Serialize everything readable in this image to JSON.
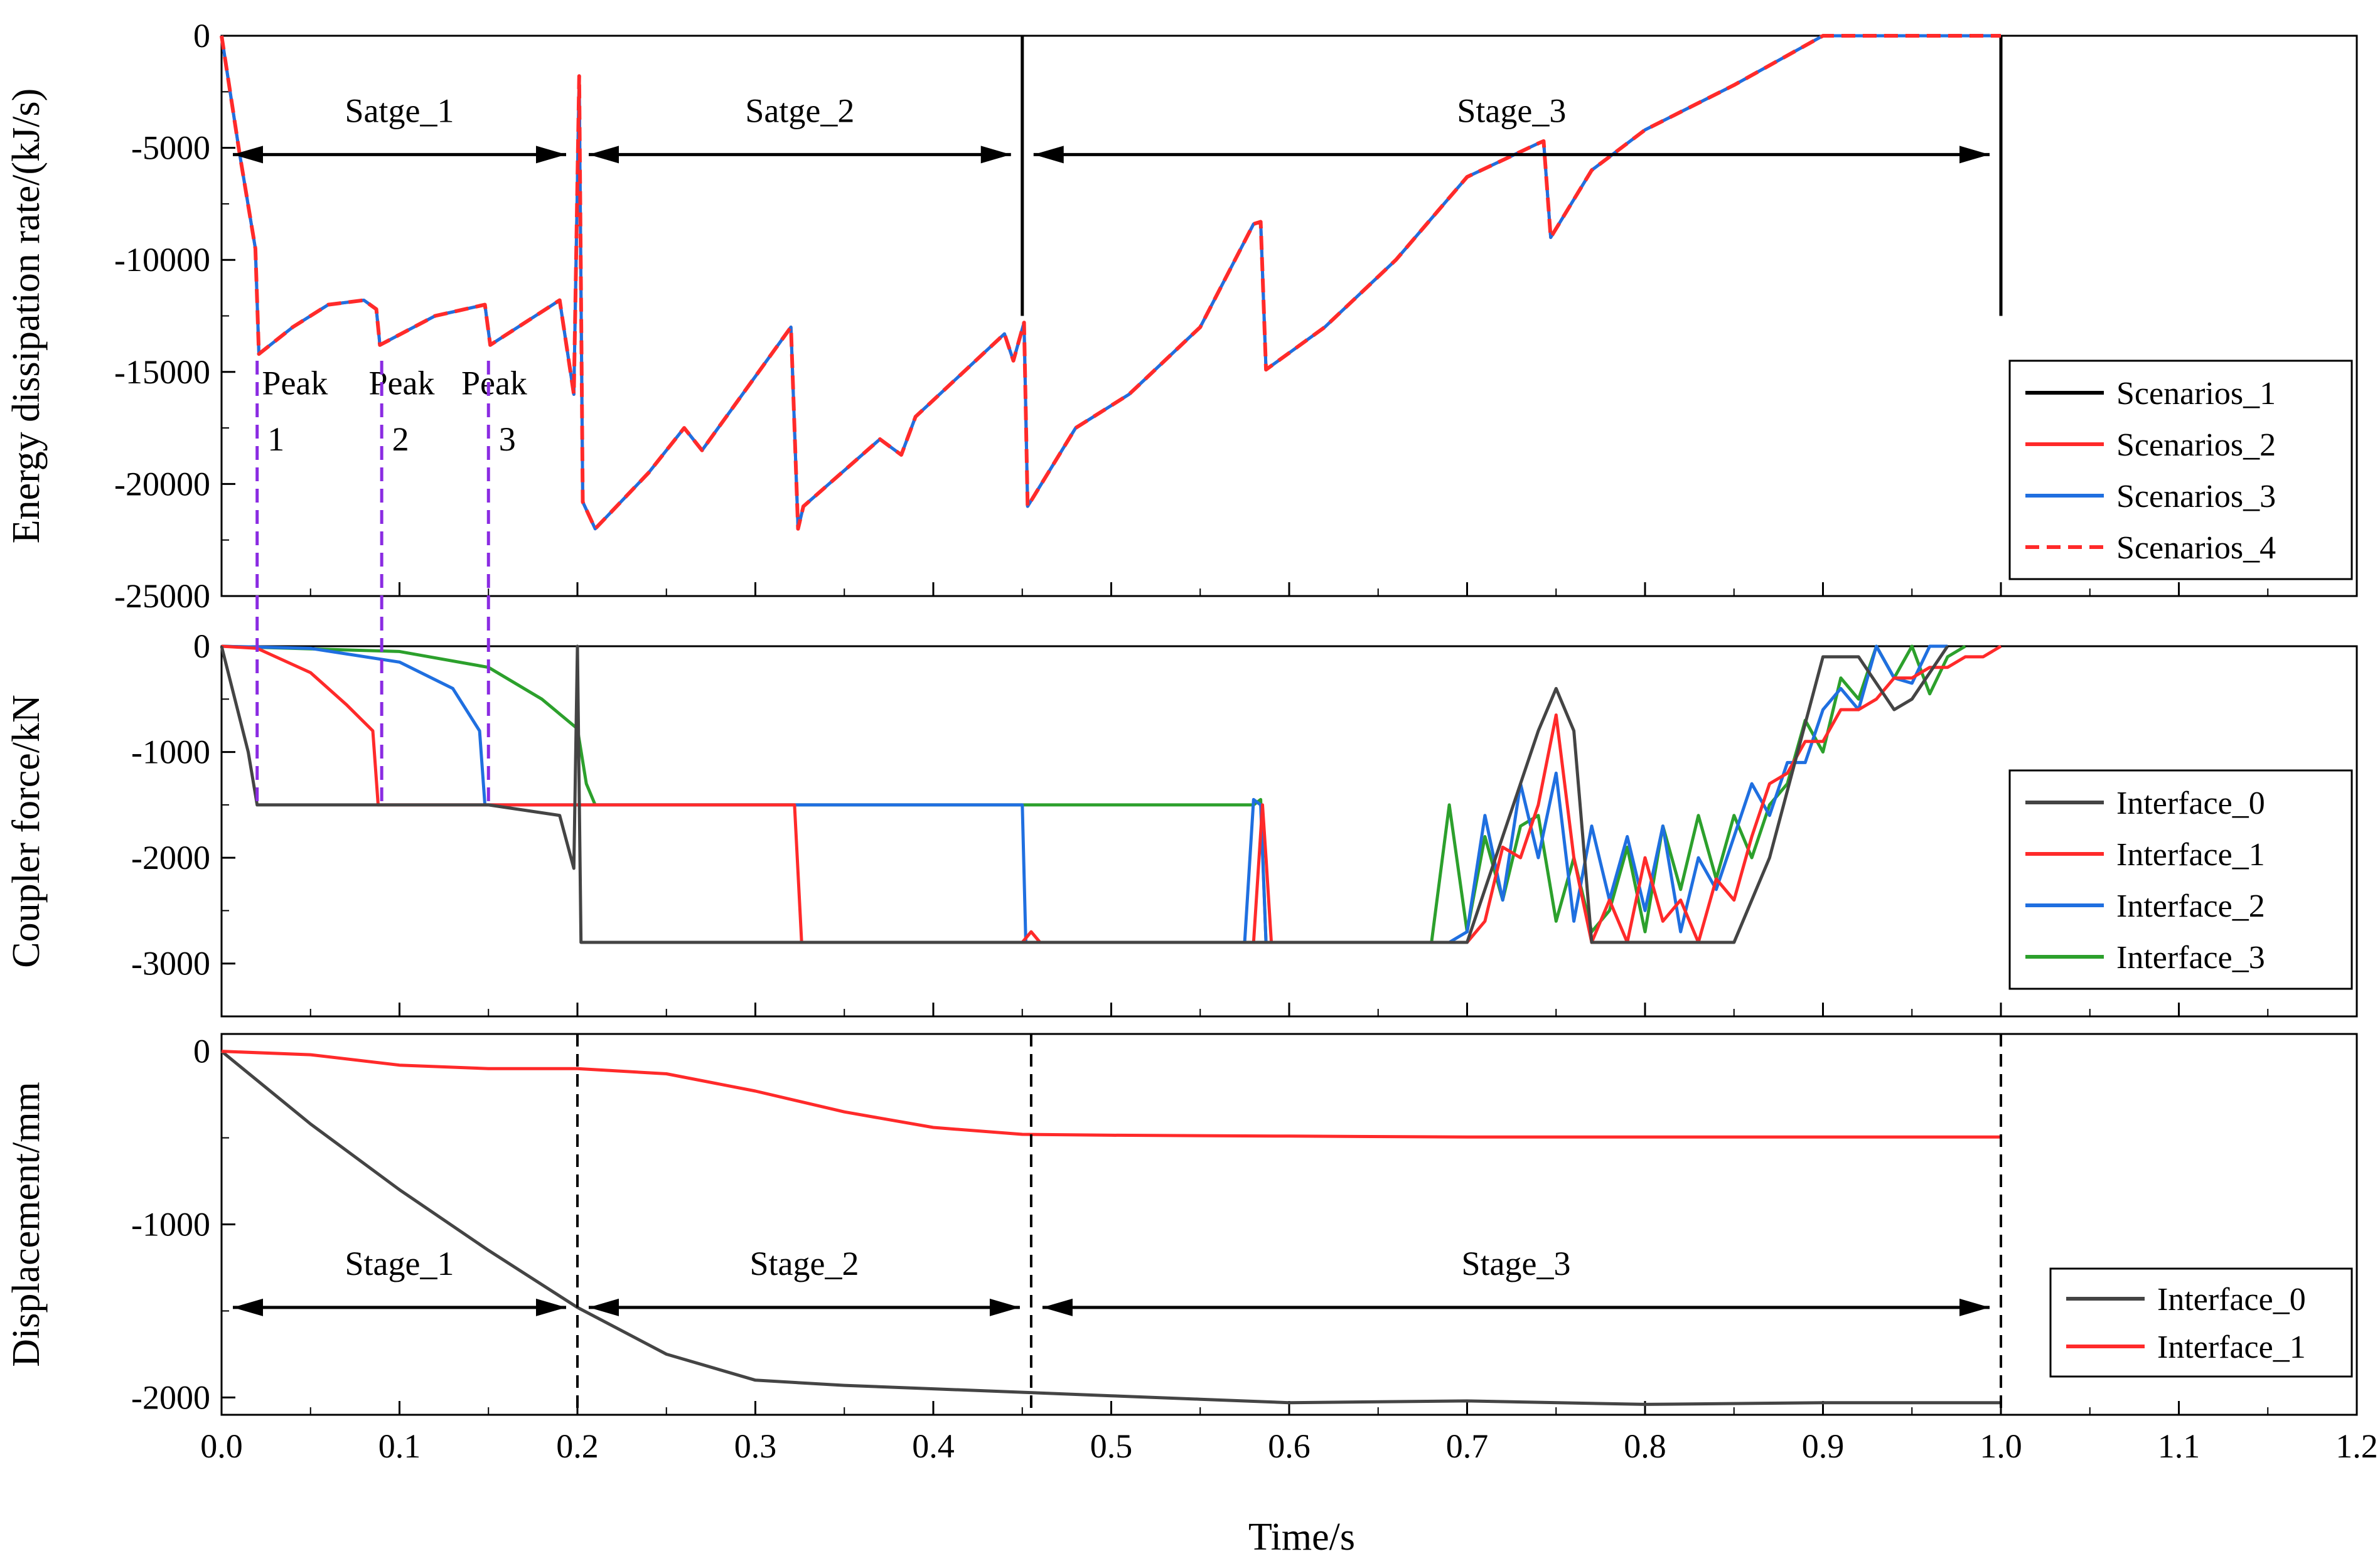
{
  "chart_data": [
    {
      "type": "line",
      "panel": "top",
      "ylabel": "Energy dissipation rate/(kJ/s)",
      "xlim": [
        0.0,
        1.2
      ],
      "ylim": [
        -25000,
        0
      ],
      "yticks": [
        0,
        -5000,
        -10000,
        -15000,
        -20000,
        -25000
      ],
      "ytick_labels": [
        "0",
        "-5000",
        "-10000",
        "-15000",
        "-20000",
        "-25000"
      ],
      "legend": {
        "position": "right",
        "entries": [
          "Scenarios_1",
          "Scenarios_2",
          "Scenarios_3",
          "Scenarios_4"
        ]
      },
      "stage_labels": [
        "Satge_1",
        "Satge_2",
        "Stage_3"
      ],
      "peak_labels": [
        [
          "Peak",
          "1"
        ],
        [
          "Peak",
          "2"
        ],
        [
          "Peak",
          "3"
        ]
      ],
      "peak_times": [
        0.02,
        0.09,
        0.15
      ],
      "stage_bounds": [
        0.0,
        0.2,
        0.45,
        1.0
      ],
      "stage_arrow_y": -5300,
      "series": [
        {
          "name": "Scenarios_1",
          "color": "#000000",
          "dash": "none",
          "x": [
            0.45,
            0.45,
            1.0,
            1.0
          ],
          "y": [
            -12500,
            0,
            -12500,
            0
          ],
          "segments": true
        },
        {
          "name": "Scenarios_2",
          "color": "#ff2a2a",
          "dash": "none",
          "x": [
            0.0,
            0.01,
            0.019,
            0.021,
            0.04,
            0.06,
            0.08,
            0.087,
            0.089,
            0.12,
            0.148,
            0.151,
            0.19,
            0.198,
            0.201,
            0.203,
            0.21,
            0.24,
            0.26,
            0.27,
            0.32,
            0.324,
            0.327,
            0.37,
            0.382,
            0.39,
            0.44,
            0.445,
            0.451,
            0.453,
            0.48,
            0.51,
            0.55,
            0.58,
            0.584,
            0.587,
            0.62,
            0.66,
            0.7,
            0.74,
            0.743,
            0.747,
            0.77,
            0.8,
            0.85,
            0.9,
            0.95,
            1.0
          ],
          "y": [
            0,
            -5200,
            -9500,
            -14200,
            -13000,
            -12000,
            -11800,
            -12200,
            -13800,
            -12500,
            -12000,
            -13800,
            -11800,
            -16000,
            -1800,
            -20800,
            -22000,
            -19500,
            -17500,
            -18500,
            -13000,
            -22000,
            -21000,
            -18000,
            -18700,
            -17000,
            -13300,
            -14500,
            -12800,
            -21000,
            -17500,
            -16000,
            -13000,
            -8400,
            -8300,
            -14900,
            -13000,
            -10000,
            -6300,
            -4800,
            -4700,
            -9000,
            -6000,
            -4200,
            -2200,
            0,
            0,
            0
          ]
        },
        {
          "name": "Scenarios_3",
          "color": "#1f6fe0",
          "dash": "none",
          "x": [
            0.0,
            0.01,
            0.019,
            0.021,
            0.04,
            0.06,
            0.08,
            0.087,
            0.089,
            0.12,
            0.148,
            0.151,
            0.19,
            0.198,
            0.201,
            0.203,
            0.21,
            0.24,
            0.26,
            0.27,
            0.32,
            0.324,
            0.327,
            0.37,
            0.382,
            0.39,
            0.44,
            0.445,
            0.451,
            0.453,
            0.48,
            0.51,
            0.55,
            0.58,
            0.584,
            0.587,
            0.62,
            0.66,
            0.7,
            0.74,
            0.743,
            0.747,
            0.77,
            0.8,
            0.85,
            0.9,
            0.95,
            1.0
          ],
          "y": [
            0,
            -5200,
            -9500,
            -14200,
            -13000,
            -12000,
            -11800,
            -12200,
            -13800,
            -12500,
            -12000,
            -13800,
            -11800,
            -16000,
            -1800,
            -20800,
            -22000,
            -19500,
            -17500,
            -18500,
            -13000,
            -22000,
            -21000,
            -18000,
            -18700,
            -17000,
            -13300,
            -14500,
            -12800,
            -21000,
            -17500,
            -16000,
            -13000,
            -8400,
            -8300,
            -14900,
            -13000,
            -10000,
            -6300,
            -4800,
            -4700,
            -9000,
            -6000,
            -4200,
            -2200,
            0,
            0,
            0
          ]
        },
        {
          "name": "Scenarios_4",
          "color": "#ff2a2a",
          "dash": "dashed",
          "x": [
            0.0,
            0.01,
            0.019,
            0.021,
            0.04,
            0.06,
            0.08,
            0.087,
            0.089,
            0.12,
            0.148,
            0.151,
            0.19,
            0.198,
            0.201,
            0.203,
            0.21,
            0.24,
            0.26,
            0.27,
            0.32,
            0.324,
            0.327,
            0.37,
            0.382,
            0.39,
            0.44,
            0.445,
            0.451,
            0.453,
            0.48,
            0.51,
            0.55,
            0.58,
            0.584,
            0.587,
            0.62,
            0.66,
            0.7,
            0.74,
            0.743,
            0.747,
            0.77,
            0.8,
            0.85,
            0.9,
            0.95,
            1.0
          ],
          "y": [
            0,
            -5200,
            -9500,
            -14200,
            -13000,
            -12000,
            -11800,
            -12200,
            -13800,
            -12500,
            -12000,
            -13800,
            -11800,
            -16000,
            -1800,
            -20800,
            -22000,
            -19500,
            -17500,
            -18500,
            -13000,
            -22000,
            -21000,
            -18000,
            -18700,
            -17000,
            -13300,
            -14500,
            -12800,
            -21000,
            -17500,
            -16000,
            -13000,
            -8400,
            -8300,
            -14900,
            -13000,
            -10000,
            -6300,
            -4800,
            -4700,
            -9000,
            -6000,
            -4200,
            -2200,
            0,
            0,
            0
          ]
        }
      ]
    },
    {
      "type": "line",
      "panel": "middle",
      "ylabel": "Coupler force/kN",
      "xlim": [
        0.0,
        1.2
      ],
      "ylim": [
        -3500,
        0
      ],
      "yticks": [
        0,
        -1000,
        -2000,
        -3000
      ],
      "ytick_labels": [
        "0",
        "-1000",
        "-2000",
        "-3000"
      ],
      "legend": {
        "position": "right",
        "entries": [
          "Interface_0",
          "Interface_1",
          "Interface_2",
          "Interface_3"
        ]
      },
      "series": [
        {
          "name": "Interface_3",
          "color": "#2ca02c",
          "x": [
            0.0,
            0.1,
            0.15,
            0.18,
            0.2,
            0.205,
            0.21,
            0.58,
            0.584,
            0.587,
            0.68,
            0.69,
            0.7,
            0.71,
            0.72,
            0.73,
            0.74,
            0.75,
            0.76,
            0.77,
            0.78,
            0.79,
            0.8,
            0.81,
            0.82,
            0.83,
            0.84,
            0.85,
            0.86,
            0.87,
            0.88,
            0.89,
            0.9,
            0.91,
            0.92,
            0.93,
            0.94,
            0.95,
            0.96,
            0.97,
            0.98
          ],
          "y": [
            0,
            -50,
            -200,
            -500,
            -780,
            -1300,
            -1500,
            -1500,
            -1450,
            -2800,
            -2800,
            -1500,
            -2700,
            -1800,
            -2400,
            -1700,
            -1600,
            -2600,
            -2000,
            -2700,
            -2500,
            -1900,
            -2700,
            -1700,
            -2300,
            -1600,
            -2200,
            -1600,
            -2000,
            -1500,
            -1300,
            -700,
            -1000,
            -300,
            -500,
            0,
            -300,
            0,
            -450,
            -100,
            0
          ]
        },
        {
          "name": "Interface_2",
          "color": "#1f6fe0",
          "x": [
            0.0,
            0.05,
            0.1,
            0.13,
            0.145,
            0.148,
            0.152,
            0.45,
            0.452,
            0.455,
            0.575,
            0.58,
            0.584,
            0.587,
            0.69,
            0.7,
            0.71,
            0.72,
            0.73,
            0.74,
            0.75,
            0.76,
            0.77,
            0.78,
            0.79,
            0.8,
            0.81,
            0.82,
            0.83,
            0.84,
            0.85,
            0.86,
            0.87,
            0.88,
            0.89,
            0.9,
            0.91,
            0.92,
            0.93,
            0.94,
            0.95,
            0.96,
            0.97
          ],
          "y": [
            0,
            -20,
            -150,
            -400,
            -800,
            -1500,
            -1500,
            -1500,
            -2800,
            -2800,
            -2800,
            -1450,
            -1500,
            -2800,
            -2800,
            -2700,
            -1600,
            -2400,
            -1300,
            -2000,
            -1200,
            -2600,
            -1700,
            -2400,
            -1800,
            -2500,
            -1700,
            -2700,
            -2000,
            -2300,
            -1800,
            -1300,
            -1600,
            -1100,
            -1100,
            -600,
            -400,
            -600,
            0,
            -300,
            -350,
            0,
            0
          ]
        },
        {
          "name": "Interface_1",
          "color": "#ff2a2a",
          "x": [
            0.0,
            0.02,
            0.05,
            0.07,
            0.085,
            0.088,
            0.092,
            0.32,
            0.322,
            0.326,
            0.45,
            0.455,
            0.46,
            0.58,
            0.585,
            0.587,
            0.59,
            0.7,
            0.71,
            0.72,
            0.73,
            0.74,
            0.75,
            0.76,
            0.77,
            0.78,
            0.79,
            0.8,
            0.81,
            0.82,
            0.83,
            0.84,
            0.85,
            0.86,
            0.87,
            0.88,
            0.89,
            0.9,
            0.91,
            0.92,
            0.93,
            0.94,
            0.95,
            0.96,
            0.97,
            0.98,
            0.99,
            1.0
          ],
          "y": [
            0,
            -20,
            -250,
            -550,
            -800,
            -1500,
            -1500,
            -1500,
            -1500,
            -2800,
            -2800,
            -2700,
            -2800,
            -2800,
            -1500,
            -2000,
            -2800,
            -2800,
            -2600,
            -1900,
            -2000,
            -1500,
            -650,
            -2000,
            -2800,
            -2400,
            -2800,
            -2000,
            -2600,
            -2400,
            -2800,
            -2200,
            -2400,
            -1800,
            -1300,
            -1200,
            -900,
            -900,
            -600,
            -600,
            -500,
            -300,
            -300,
            -200,
            -200,
            -100,
            -100,
            0
          ]
        },
        {
          "name": "Interface_0",
          "color": "#444444",
          "x": [
            0.0,
            0.015,
            0.02,
            0.022,
            0.09,
            0.15,
            0.19,
            0.198,
            0.2,
            0.202,
            0.205,
            0.45,
            0.7,
            0.72,
            0.74,
            0.75,
            0.76,
            0.77,
            0.79,
            0.85,
            0.87,
            0.9,
            0.92,
            0.94,
            0.95,
            0.97
          ],
          "y": [
            0,
            -1000,
            -1500,
            -1500,
            -1500,
            -1500,
            -1600,
            -2100,
            0,
            -2800,
            -2800,
            -2800,
            -2800,
            -1800,
            -800,
            -400,
            -800,
            -2800,
            -2800,
            -2800,
            -2000,
            -100,
            -100,
            -600,
            -500,
            0
          ]
        }
      ]
    },
    {
      "type": "line",
      "panel": "bottom",
      "ylabel": "Displacement/mm",
      "xlabel": "Time/s",
      "xlim": [
        0.0,
        1.2
      ],
      "xticks": [
        0.0,
        0.1,
        0.2,
        0.3,
        0.4,
        0.5,
        0.6,
        0.7,
        0.8,
        0.9,
        1.0,
        1.1,
        1.2
      ],
      "xtick_labels": [
        "0.0",
        "0.1",
        "0.2",
        "0.3",
        "0.4",
        "0.5",
        "0.6",
        "0.7",
        "0.8",
        "0.9",
        "1.0",
        "1.1",
        "1.2"
      ],
      "ylim": [
        -2100,
        100
      ],
      "yticks": [
        0,
        -1000,
        -2000
      ],
      "ytick_labels": [
        "0",
        "-1000",
        "-2000"
      ],
      "legend": {
        "position": "bottom-right",
        "entries": [
          "Interface_0",
          "Interface_1"
        ]
      },
      "stage_labels": [
        "Stage_1",
        "Stage_2",
        "Stage_3"
      ],
      "stage_bounds": [
        0.0,
        0.2,
        0.455,
        1.0
      ],
      "stage_arrow_y": -1480,
      "series": [
        {
          "name": "Interface_0",
          "color": "#444444",
          "x": [
            0.0,
            0.05,
            0.1,
            0.15,
            0.2,
            0.25,
            0.3,
            0.35,
            0.4,
            0.45,
            0.5,
            0.55,
            0.6,
            0.7,
            0.8,
            0.9,
            1.0
          ],
          "y": [
            0,
            -420,
            -800,
            -1150,
            -1480,
            -1750,
            -1900,
            -1930,
            -1950,
            -1970,
            -1990,
            -2010,
            -2030,
            -2020,
            -2040,
            -2030,
            -2030
          ]
        },
        {
          "name": "Interface_1",
          "color": "#ff2a2a",
          "x": [
            0.0,
            0.05,
            0.1,
            0.15,
            0.2,
            0.25,
            0.3,
            0.35,
            0.4,
            0.45,
            0.5,
            0.6,
            0.7,
            0.8,
            1.0
          ],
          "y": [
            0,
            -20,
            -80,
            -100,
            -100,
            -130,
            -230,
            -350,
            -440,
            -480,
            -485,
            -490,
            -495,
            -495,
            -495
          ]
        }
      ]
    }
  ]
}
